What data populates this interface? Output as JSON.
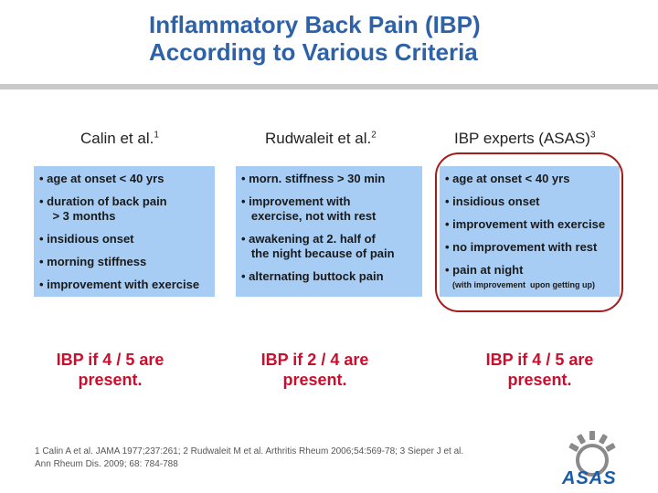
{
  "slide": {
    "title_line1": "Inflammatory Back Pain (IBP)",
    "title_line2": "According to Various Criteria"
  },
  "columns": [
    {
      "heading": "Calin et al.",
      "ref_mark": "1",
      "items": [
        "• age at onset < 40 yrs",
        "• duration of back pain",
        "    > 3 months",
        "• insidious onset",
        "• morning stiffness",
        "• improvement with exercise"
      ],
      "verdict": "IBP if 4 / 5 are\npresent."
    },
    {
      "heading": "Rudwaleit et al.",
      "ref_mark": "2",
      "items": [
        "• morn. stiffness > 30 min",
        "• improvement with",
        "   exercise, not with rest",
        "• awakening at 2. half of",
        "   the night because of pain",
        "• alternating buttock pain"
      ],
      "verdict": "IBP if 2 / 4 are\npresent."
    },
    {
      "heading": "IBP experts (ASAS)",
      "ref_mark": "3",
      "items": [
        "• age at onset < 40 yrs",
        "• insidious onset",
        "• improvement with exercise",
        "• no improvement with rest",
        "• pain at night"
      ],
      "note": "(with improvement  upon getting up)",
      "verdict": "IBP if 4 / 5 are\npresent."
    }
  ],
  "references": {
    "line1": "1 Calin A et al. JAMA 1977;237:261; 2 Rudwaleit M et al. Arthritis Rheum 2006;54:569-78;  3 Sieper J et al.",
    "line2": "Ann Rheum Dis. 2009; 68: 784-788"
  },
  "logo": {
    "text": "ASAS"
  },
  "colors": {
    "title": "#2e62a8",
    "box": "#a7cdf5",
    "verdict": "#c8102e",
    "highlight_ring": "#a31c1c"
  }
}
